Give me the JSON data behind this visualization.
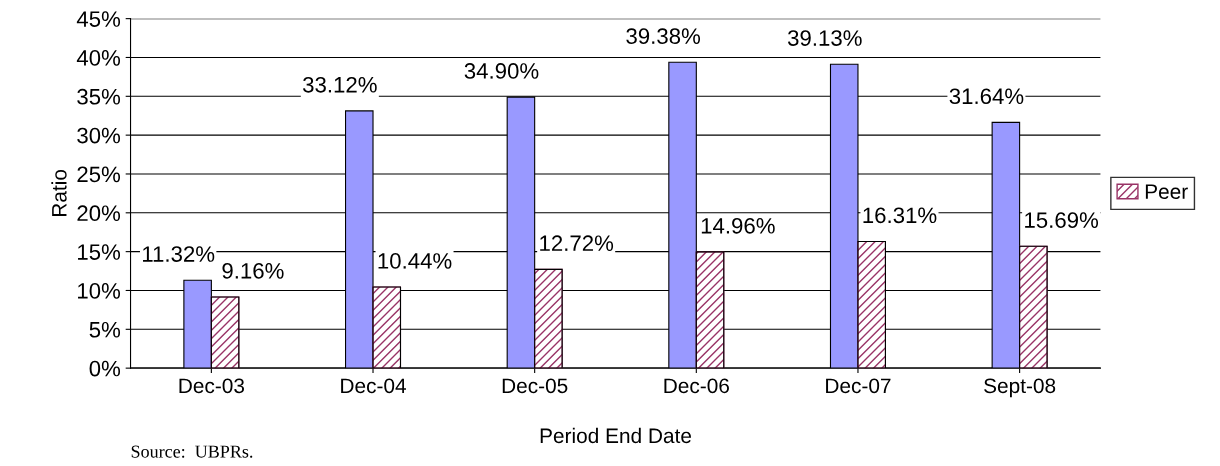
{
  "chart_data": {
    "type": "bar",
    "xlabel": "Period End Date",
    "ylabel": "Ratio",
    "categories": [
      "Dec-03",
      "Dec-04",
      "Dec-05",
      "Dec-06",
      "Dec-07",
      "Sept-08"
    ],
    "series": [
      {
        "color": "#9999ff",
        "values": [
          11.32,
          33.12,
          34.9,
          39.38,
          39.13,
          31.64
        ],
        "value_labels": [
          "11.32%",
          "33.12%",
          "34.90%",
          "39.38%",
          "39.13%",
          "31.64%"
        ]
      },
      {
        "name": "Peer",
        "color": "#993366",
        "values": [
          9.16,
          10.44,
          12.72,
          14.96,
          16.31,
          15.69
        ],
        "value_labels": [
          "9.16%",
          "10.44%",
          "12.72%",
          "14.96%",
          "16.31%",
          "15.69%"
        ]
      }
    ],
    "ylim": [
      0,
      45
    ],
    "yticks": [
      {
        "value": 0,
        "label": "0%"
      },
      {
        "value": 5,
        "label": "5%"
      },
      {
        "value": 10,
        "label": "10%"
      },
      {
        "value": 15,
        "label": "15%"
      },
      {
        "value": 20,
        "label": "20%"
      },
      {
        "value": 25,
        "label": "25%"
      },
      {
        "value": 30,
        "label": "30%"
      },
      {
        "value": 35,
        "label": "35%"
      },
      {
        "value": 40,
        "label": "40%"
      },
      {
        "value": 45,
        "label": "45%"
      }
    ],
    "grid": "y",
    "legend": "right",
    "annotations": [
      "Source:  UBPRs."
    ]
  }
}
